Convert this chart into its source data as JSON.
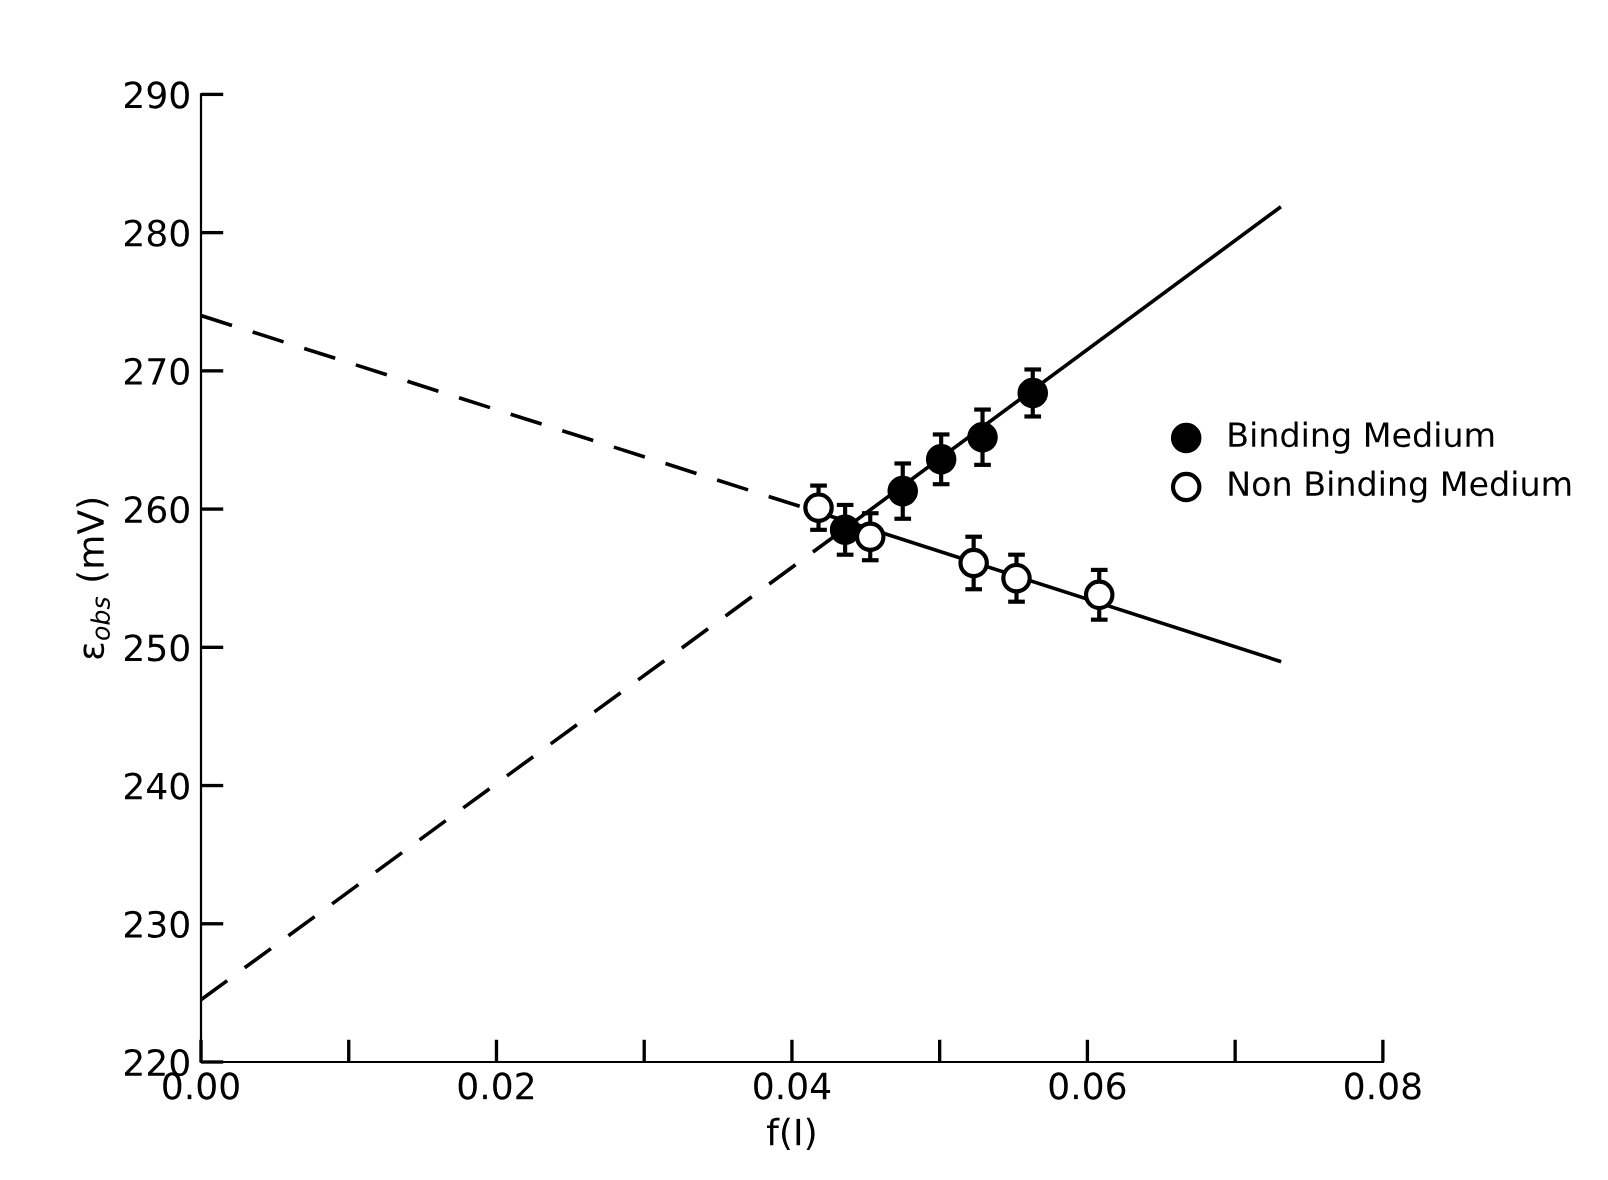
{
  "chart_data": {
    "type": "scatter",
    "xlabel": "f(I)",
    "ylabel": "ε$_{obs}$ (mV)",
    "xlim": [
      0,
      0.08
    ],
    "ylim": [
      220,
      290
    ],
    "xticks": [
      {
        "value": 0,
        "label": "0.00"
      },
      {
        "value": 0.01,
        "label": null
      },
      {
        "value": 0.02,
        "label": "0.02"
      },
      {
        "value": 0.03,
        "label": null
      },
      {
        "value": 0.04,
        "label": "0.04"
      },
      {
        "value": 0.05,
        "label": null
      },
      {
        "value": 0.06,
        "label": "0.06"
      },
      {
        "value": 0.07,
        "label": null
      },
      {
        "value": 0.08,
        "label": "0.08"
      }
    ],
    "yticks": [
      220,
      230,
      240,
      250,
      260,
      270,
      280,
      290
    ],
    "grid": false,
    "legend": "right",
    "series": [
      {
        "name": "Binding Medium",
        "marker": "circle",
        "color": "#000000",
        "x": [
          0.0436,
          0.0475,
          0.0501,
          0.0529,
          0.0563
        ],
        "values": [
          258.5,
          261.3,
          263.6,
          265.2,
          268.4
        ],
        "errors": [
          1.8,
          2.0,
          1.8,
          2.0,
          1.7
        ]
      },
      {
        "name": "Non Binding Medium",
        "marker": "circle",
        "color": "#ffffff",
        "x": [
          0.0418,
          0.0453,
          0.0523,
          0.0552,
          0.0608
        ],
        "values": [
          260.1,
          258.0,
          256.1,
          255.0,
          253.8
        ],
        "errors": [
          1.6,
          1.7,
          1.9,
          1.7,
          1.8
        ]
      },
      {
        "type": "line",
        "line_style": "dashed",
        "color": "#000000",
        "x": [
          0,
          0.0436
        ],
        "values": [
          224.5,
          258.6
        ]
      },
      {
        "type": "line",
        "line_style": "solid",
        "color": "#000000",
        "x": [
          0.0436,
          0.073
        ],
        "values": [
          258.6,
          281.8
        ]
      },
      {
        "type": "line",
        "line_style": "dashed",
        "color": "#000000",
        "x": [
          0,
          0.042
        ],
        "values": [
          274.0,
          259.7
        ]
      },
      {
        "type": "line",
        "line_style": "solid",
        "color": "#000000",
        "x": [
          0.042,
          0.073
        ],
        "values": [
          259.7,
          249.0
        ]
      }
    ]
  }
}
